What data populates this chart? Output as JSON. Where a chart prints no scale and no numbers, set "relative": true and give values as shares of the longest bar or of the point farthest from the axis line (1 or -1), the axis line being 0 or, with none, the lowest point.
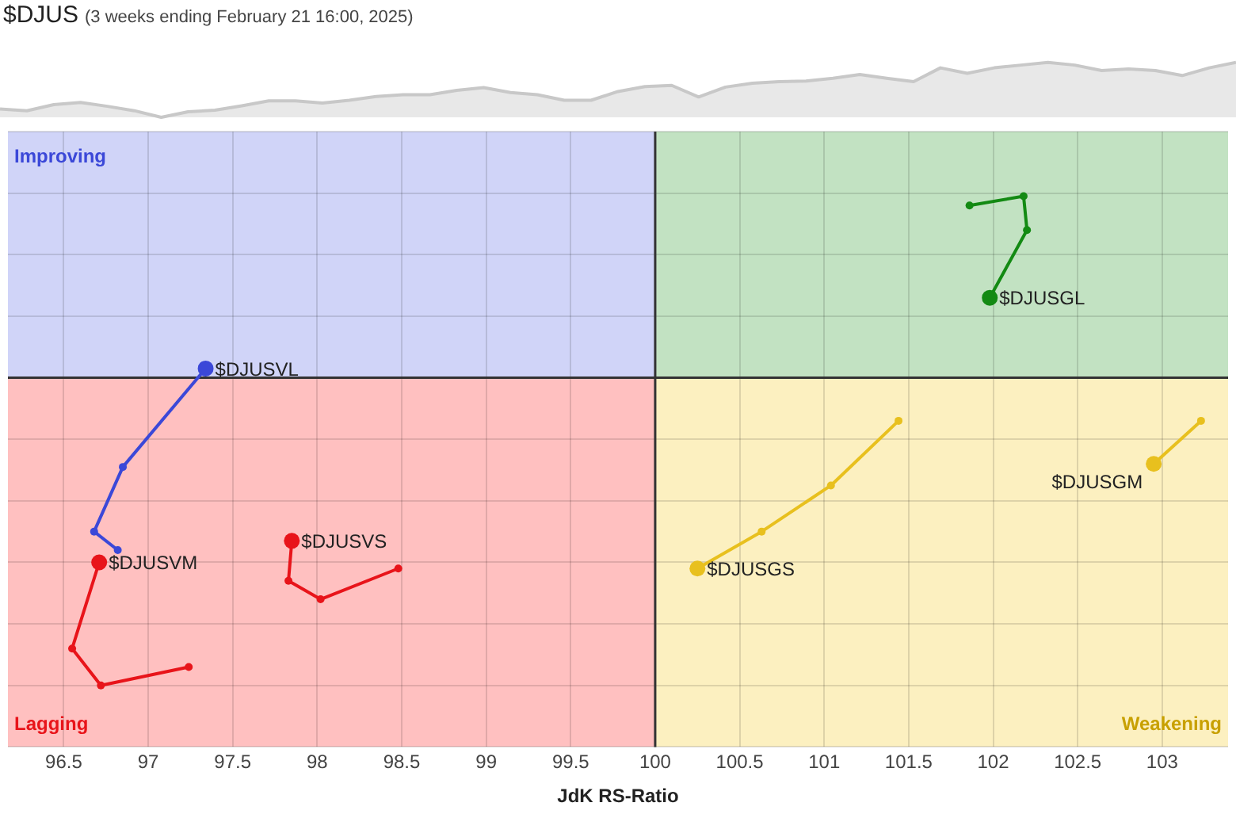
{
  "chart_data": [
    {
      "type": "area",
      "title": "$DJUS",
      "subtitle": "(3 weeks ending February 21 16:00, 2025)",
      "relative": true,
      "grid": false,
      "legend": false,
      "categories": [
        null,
        null,
        null,
        null,
        null,
        null,
        null,
        null,
        null,
        null,
        null,
        null,
        null,
        null,
        null,
        null,
        null,
        null,
        null,
        null,
        null,
        null,
        null,
        null,
        null,
        null,
        null,
        null,
        null,
        null,
        null,
        null,
        null,
        null,
        null,
        null,
        null,
        null,
        null,
        null,
        null,
        null,
        null,
        null,
        null,
        null,
        null
      ],
      "series": [
        {
          "color": "#c8c8c8",
          "values": [
            0.15,
            0.12,
            0.23,
            0.27,
            0.2,
            0.12,
            0,
            0.1,
            0.13,
            0.21,
            0.3,
            0.3,
            0.26,
            0.31,
            0.38,
            0.41,
            0.41,
            0.49,
            0.54,
            0.45,
            0.41,
            0.31,
            0.31,
            0.47,
            0.56,
            0.58,
            0.37,
            0.55,
            0.62,
            0.65,
            0.66,
            0.71,
            0.78,
            0.71,
            0.65,
            0.9,
            0.8,
            0.9,
            0.95,
            1,
            0.95,
            0.85,
            0.88,
            0.85,
            0.76,
            0.9,
            1
          ]
        }
      ]
    },
    {
      "type": "line",
      "xlabel": "JdK RS-Ratio",
      "relative": true,
      "grid": true,
      "legend": false,
      "marker": "circle",
      "xlim": [
        96.17,
        103.39
      ],
      "xticks": [
        96.5,
        97,
        97.5,
        98,
        98.5,
        99,
        99.5,
        100,
        100.5,
        101,
        101.5,
        102,
        102.5,
        103
      ],
      "ref_lines": [
        {
          "axis": "x",
          "value": 100
        },
        {
          "axis": "y",
          "value": 0
        }
      ],
      "annotations": [
        "Improving",
        "Lagging",
        "Weakening"
      ],
      "series": [
        {
          "name": "$DJUSVL",
          "color": "#3b48d8",
          "x": [
            96.82,
            96.68,
            96.85,
            97.34
          ],
          "values": [
            -0.56,
            -0.5,
            -0.29,
            0.03
          ]
        },
        {
          "name": "$DJUSVM",
          "color": "#e8141a",
          "x": [
            97.24,
            96.72,
            96.55,
            96.71
          ],
          "values": [
            -0.94,
            -1,
            -0.88,
            -0.6
          ]
        },
        {
          "name": "$DJUSVS",
          "color": "#e8141a",
          "x": [
            98.48,
            98.02,
            97.83,
            97.85
          ],
          "values": [
            -0.62,
            -0.72,
            -0.66,
            -0.53
          ]
        },
        {
          "name": "$DJUSGL",
          "color": "#138a13",
          "x": [
            101.86,
            102.18,
            102.2,
            101.98
          ],
          "values": [
            0.56,
            0.59,
            0.48,
            0.26
          ]
        },
        {
          "name": "$DJUSGS",
          "color": "#e8c01e",
          "x": [
            101.44,
            101.04,
            100.63,
            100.25
          ],
          "values": [
            -0.14,
            -0.35,
            -0.5,
            -0.62
          ]
        },
        {
          "name": "$DJUSGM",
          "color": "#e8c01e",
          "x": [
            103.23,
            102.95
          ],
          "values": [
            -0.14,
            -0.28
          ]
        }
      ]
    }
  ]
}
